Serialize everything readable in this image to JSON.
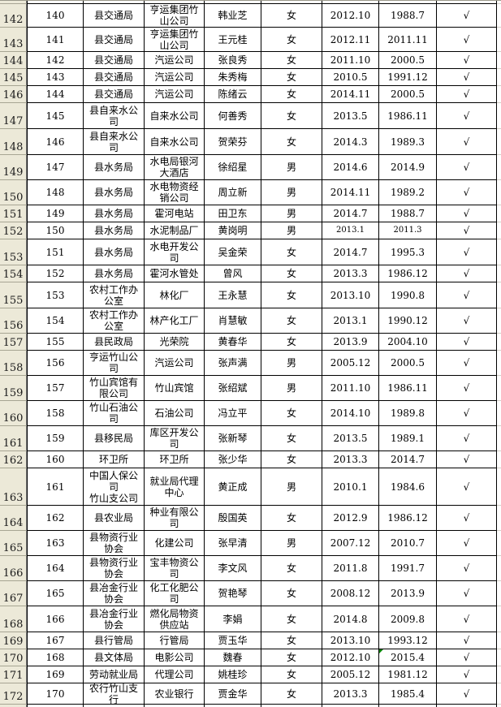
{
  "colors": {
    "grid_border": "#000000",
    "row_header_bg": "#ece9d8",
    "row_header_separator": "#a7a593",
    "cell_bg": "#ffffff",
    "gutter_gridline": "#d4d0c8",
    "error_indicator": "#008200"
  },
  "sheet": {
    "row_header_width": 33,
    "gutter_width": 5,
    "top_partial_height": 4,
    "bottom_partial_height": 4,
    "checkmark_glyph": "√",
    "columns": [
      {
        "key": "serial",
        "name": "serial-number-cell",
        "width": 70
      },
      {
        "key": "unit",
        "name": "department-cell",
        "width": 75
      },
      {
        "key": "company",
        "name": "company-cell",
        "width": 74
      },
      {
        "key": "name",
        "name": "employee-name-cell",
        "width": 70
      },
      {
        "key": "gender",
        "name": "gender-cell",
        "width": 75
      },
      {
        "key": "date1",
        "name": "date-a-cell",
        "width": 70
      },
      {
        "key": "date2",
        "name": "date-b-cell",
        "width": 71
      },
      {
        "key": "check",
        "name": "checkmark-cell",
        "width": 74
      }
    ],
    "rows": [
      {
        "label": "142",
        "height": 29,
        "serial": "140",
        "unit": "县交通局",
        "company": "亨运集团竹山公司",
        "name": "韩业芝",
        "gender": "女",
        "date1": "2012.10",
        "date2": "1988.7",
        "check": "√"
      },
      {
        "label": "143",
        "height": 30,
        "serial": "141",
        "unit": "县交通局",
        "company": "亨运集团竹山公司",
        "name": "王元桂",
        "gender": "女",
        "date1": "2012.11",
        "date2": "2011.11",
        "check": "√"
      },
      {
        "label": "144",
        "height": 21,
        "serial": "142",
        "unit": "县交通局",
        "company": "汽运公司",
        "name": "张良秀",
        "gender": "女",
        "date1": "2011.10",
        "date2": "2000.5",
        "check": "√"
      },
      {
        "label": "145",
        "height": 21,
        "serial": "143",
        "unit": "县交通局",
        "company": "汽运公司",
        "name": "朱秀梅",
        "gender": "女",
        "date1": "2010.5",
        "date2": "1991.12",
        "check": "√"
      },
      {
        "label": "146",
        "height": 21,
        "serial": "144",
        "unit": "县交通局",
        "company": "汽运公司",
        "name": "陈绪云",
        "gender": "女",
        "date1": "2014.11",
        "date2": "2000.5",
        "check": "√"
      },
      {
        "label": "147",
        "height": 32,
        "serial": "145",
        "unit": "县自来水公司",
        "company": "自来水公司",
        "name": "何善秀",
        "gender": "女",
        "date1": "2013.5",
        "date2": "1986.11",
        "check": "√"
      },
      {
        "label": "148",
        "height": 32,
        "serial": "146",
        "unit": "县自来水公司",
        "company": "自来水公司",
        "name": "贺荣芬",
        "gender": "女",
        "date1": "2014.3",
        "date2": "1989.3",
        "check": "√"
      },
      {
        "label": "149",
        "height": 31,
        "serial": "147",
        "unit": "县水务局",
        "company": "水电局银河大酒店",
        "name": "徐绍星",
        "gender": "男",
        "date1": "2014.6",
        "date2": "2014.9",
        "check": "√"
      },
      {
        "label": "150",
        "height": 31,
        "serial": "148",
        "unit": "县水务局",
        "company": "水电物资经销公司",
        "name": "周立新",
        "gender": "男",
        "date1": "2014.11",
        "date2": "1989.2",
        "check": "√"
      },
      {
        "label": "151",
        "height": 21,
        "serial": "149",
        "unit": "县水务局",
        "company": "霍河电站",
        "name": "田卫东",
        "gender": "男",
        "date1": "2014.7",
        "date2": "1988.7",
        "check": "√"
      },
      {
        "label": "152",
        "height": 21,
        "serial": "150",
        "unit": "县水务局",
        "company": "水泥制品厂",
        "name": "黄岗明",
        "gender": "男",
        "date1": "2013.1",
        "date2": "2011.3",
        "check": "√",
        "small_dates": true
      },
      {
        "label": "153",
        "height": 32,
        "serial": "151",
        "unit": "县水务局",
        "company": "水电开发公司",
        "name": "吴金荣",
        "gender": "女",
        "date1": "2014.7",
        "date2": "1995.3",
        "check": "√"
      },
      {
        "label": "154",
        "height": 21,
        "serial": "152",
        "unit": "县水务局",
        "company": "霍河水管处",
        "name": "曾风",
        "gender": "女",
        "date1": "2013.3",
        "date2": "1986.12",
        "check": "√"
      },
      {
        "label": "155",
        "height": 32,
        "serial": "153",
        "unit": "农村工作办公室",
        "company": "林化厂",
        "name": "王永慧",
        "gender": "女",
        "date1": "2013.10",
        "date2": "1990.8",
        "check": "√"
      },
      {
        "label": "156",
        "height": 31,
        "serial": "154",
        "unit": "农村工作办公室",
        "company": "林产化工厂",
        "name": "肖慧敏",
        "gender": "女",
        "date1": "2013.1",
        "date2": "1990.12",
        "check": "√"
      },
      {
        "label": "157",
        "height": 21,
        "serial": "155",
        "unit": "县民政局",
        "company": "光荣院",
        "name": "黄春华",
        "gender": "女",
        "date1": "2013.9",
        "date2": "2004.10",
        "check": "√"
      },
      {
        "label": "158",
        "height": 31,
        "serial": "156",
        "unit": "亨运竹山公司",
        "company": "汽运公司",
        "name": "张声满",
        "gender": "男",
        "date1": "2005.12",
        "date2": "2000.5",
        "check": "√"
      },
      {
        "label": "159",
        "height": 31,
        "serial": "157",
        "unit": "竹山宾馆有限公司",
        "company": "竹山宾馆",
        "name": "张绍斌",
        "gender": "男",
        "date1": "2011.10",
        "date2": "1986.11",
        "check": "√"
      },
      {
        "label": "160",
        "height": 31,
        "serial": "158",
        "unit": "竹山石油公司",
        "company": "石油公司",
        "name": "冯立平",
        "gender": "女",
        "date1": "2014.10",
        "date2": "1989.8",
        "check": "√"
      },
      {
        "label": "161",
        "height": 31,
        "serial": "159",
        "unit": "县移民局",
        "company": "库区开发公司",
        "name": "张新琴",
        "gender": "女",
        "date1": "2013.5",
        "date2": "1989.1",
        "check": "√"
      },
      {
        "label": "162",
        "height": 21,
        "serial": "160",
        "unit": "环卫所",
        "company": "环卫所",
        "name": "张少华",
        "gender": "女",
        "date1": "2013.3",
        "date2": "2014.7",
        "check": "√"
      },
      {
        "label": "163",
        "height": 46,
        "serial": "161",
        "unit": "中国人保公司\n竹山支公司",
        "company": "就业局代理中心",
        "name": "黄正成",
        "gender": "男",
        "date1": "2010.1",
        "date2": "1984.6",
        "check": "√"
      },
      {
        "label": "164",
        "height": 31,
        "serial": "162",
        "unit": "县农业局",
        "company": "种业有限公司",
        "name": "殷国英",
        "gender": "女",
        "date1": "2012.9",
        "date2": "1986.12",
        "check": "√"
      },
      {
        "label": "165",
        "height": 31,
        "serial": "163",
        "unit": "县物资行业协会",
        "company": "化建公司",
        "name": "张早清",
        "gender": "男",
        "date1": "2007.12",
        "date2": "2010.7",
        "check": "√"
      },
      {
        "label": "166",
        "height": 31,
        "serial": "164",
        "unit": "县物资行业协会",
        "company": "宝丰物资公司",
        "name": "李文风",
        "gender": "女",
        "date1": "2011.8",
        "date2": "1991.7",
        "check": "√"
      },
      {
        "label": "167",
        "height": 31,
        "serial": "165",
        "unit": "县冶金行业协会",
        "company": "化工化肥公司",
        "name": "贺艳琴",
        "gender": "女",
        "date1": "2008.12",
        "date2": "2013.9",
        "check": "√"
      },
      {
        "label": "168",
        "height": 32,
        "serial": "166",
        "unit": "县冶金行业协会",
        "company": "燃化局物资供应站",
        "name": "李娟",
        "gender": "女",
        "date1": "2014.8",
        "date2": "2009.8",
        "check": "√"
      },
      {
        "label": "169",
        "height": 21,
        "serial": "167",
        "unit": "县行管局",
        "company": "行管局",
        "name": "贾玉华",
        "gender": "女",
        "date1": "2013.10",
        "date2": "1993.12",
        "check": "√"
      },
      {
        "label": "170",
        "height": 21,
        "serial": "168",
        "unit": "县文体局",
        "company": "电影公司",
        "name": "魏春",
        "gender": "女",
        "date1": "2012.10",
        "date2": "2015.4",
        "check": "√",
        "error_marker_date2": true
      },
      {
        "label": "171",
        "height": 21,
        "serial": "169",
        "unit": "劳动就业局",
        "company": "代理公司",
        "name": "姚桂珍",
        "gender": "女",
        "date1": "2005.12",
        "date2": "1981.12",
        "check": "√"
      },
      {
        "label": "172",
        "height": 26,
        "serial": "170",
        "unit": "农行竹山支行",
        "company": "农业银行",
        "name": "贾金华",
        "gender": "女",
        "date1": "2013.3",
        "date2": "1985.4",
        "check": "√"
      }
    ]
  }
}
